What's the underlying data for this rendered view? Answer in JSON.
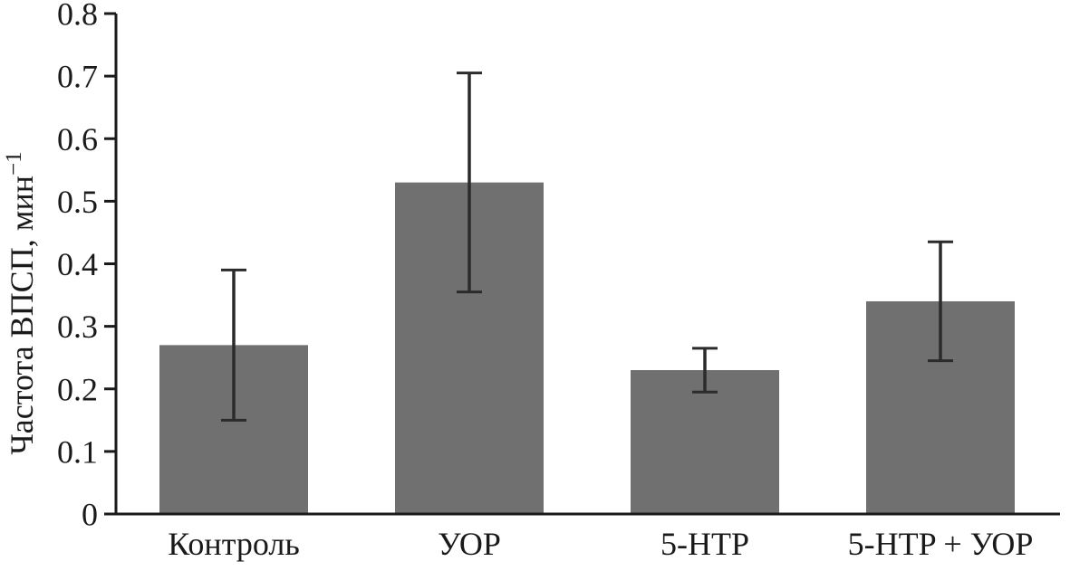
{
  "figure": {
    "background": "#ffffff"
  },
  "chart_data": {
    "type": "bar",
    "title": "",
    "categories": [
      "Контроль",
      "УОР",
      "5-HTP",
      "5-HTP + УОР"
    ],
    "values": [
      0.27,
      0.53,
      0.23,
      0.34
    ],
    "errors": [
      0.12,
      0.175,
      0.035,
      0.095
    ],
    "error_style": "symmetric-with-caps",
    "ylabel": "Частота ВПСП, мин",
    "ylabel_exponent": "−1",
    "xlabel": "",
    "ylim": [
      0,
      0.8
    ],
    "ytick_labels": [
      "0",
      "0.1",
      "0.2",
      "0.3",
      "0.4",
      "0.5",
      "0.6",
      "0.7",
      "0.8"
    ],
    "grid": false,
    "legend": "none",
    "bar_color": "#707070",
    "axis_color": "#1a1a1a",
    "error_bar_color": "#2b2b2b"
  }
}
